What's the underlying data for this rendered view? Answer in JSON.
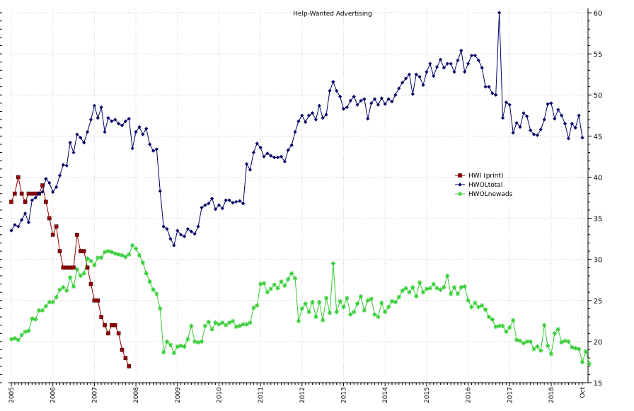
{
  "chart_data": {
    "type": "line",
    "title": "Help-Wanted Advertising",
    "xlabel": "",
    "ylabel": "",
    "ylim": [
      15,
      60
    ],
    "y_ticks": [
      15,
      20,
      25,
      30,
      35,
      40,
      45,
      50,
      55,
      60
    ],
    "x_range": [
      2005.0,
      2018.75
    ],
    "x_tick_labels": [
      {
        "label": "2005",
        "x": 2005
      },
      {
        "label": "2006",
        "x": 2006
      },
      {
        "label": "2007",
        "x": 2007
      },
      {
        "label": "2008",
        "x": 2008
      },
      {
        "label": "2009",
        "x": 2009
      },
      {
        "label": "2010",
        "x": 2010
      },
      {
        "label": "2011",
        "x": 2011
      },
      {
        "label": "2012",
        "x": 2012
      },
      {
        "label": "2013",
        "x": 2013
      },
      {
        "label": "2014",
        "x": 2014
      },
      {
        "label": "2015",
        "x": 2015
      },
      {
        "label": "2016",
        "x": 2016
      },
      {
        "label": "2017",
        "x": 2017
      },
      {
        "label": "2018",
        "x": 2018
      },
      {
        "label": "Oct",
        "x": 2018.75
      }
    ],
    "grid": true,
    "legend_position": "center-right",
    "series": [
      {
        "name": "HWI (print)",
        "color": "#990000",
        "marker": "square",
        "x_start": 2005.0,
        "step": 0.0833333,
        "values": [
          37,
          38,
          40,
          38,
          37,
          38,
          38,
          38,
          38,
          39,
          37,
          35,
          33,
          34,
          31,
          29,
          29,
          29,
          29,
          33,
          31,
          31,
          29,
          27,
          25,
          25,
          23,
          22,
          21,
          22,
          22,
          21,
          19,
          18,
          17
        ]
      },
      {
        "name": "HWOLtotal",
        "color": "#000066",
        "marker": "diamond",
        "x_start": 2005.0,
        "step": 0.0833333,
        "values": [
          33.5,
          34.2,
          34,
          34.8,
          35.6,
          34.5,
          37.2,
          37.5,
          38,
          38.2,
          39.8,
          39.3,
          38.2,
          38.8,
          40.2,
          41.5,
          41.4,
          44.2,
          43,
          45.2,
          44.8,
          44.2,
          45.5,
          47,
          48.7,
          47.2,
          48.5,
          45.5,
          47.2,
          46.8,
          47,
          46.5,
          46.3,
          46.8,
          47.1,
          43.5,
          45.5,
          46.1,
          45.2,
          45.9,
          44,
          43.2,
          43.4,
          38.3,
          34,
          33.7,
          32.5,
          31.7,
          33.5,
          33,
          32.8,
          33.7,
          33.4,
          33.1,
          34,
          36.3,
          36.6,
          36.8,
          37.4,
          36.1,
          36.6,
          36.2,
          37.2,
          37.2,
          36.9,
          37.0,
          37.1,
          36.8,
          41.6,
          40.9,
          43,
          44.1,
          43.6,
          42.5,
          42.9,
          42.6,
          42.4,
          42.4,
          42.5,
          41.9,
          43.3,
          43.9,
          45.5,
          46.8,
          47.5,
          46.7,
          47.5,
          47.8,
          47,
          48.7,
          47.2,
          47.6,
          50.5,
          51.6,
          50.5,
          49.8,
          48.3,
          48.5,
          49.3,
          49.8,
          48.8,
          49.3,
          49.5,
          47.1,
          49,
          49.5,
          48.8,
          49.6,
          48.9,
          49.5,
          49.2,
          50,
          50.8,
          51.5,
          52,
          52.5,
          50.1,
          52.5,
          52.2,
          51.2,
          52.8,
          53.8,
          52.3,
          53.4,
          54.3,
          53.3,
          53.8,
          53.8,
          52.8,
          54.2,
          55.4,
          52.8,
          53.8,
          54.8,
          54.8,
          54.2,
          53.3,
          51,
          51,
          50.2,
          50,
          60,
          47.2,
          49.1,
          48.8,
          45.4,
          46.6,
          46.1,
          47.8,
          47.4,
          45.7,
          45.2,
          45.1,
          45.8,
          47,
          48.9,
          49,
          47.1,
          48.2,
          47.5,
          46.5,
          44.7,
          46.5,
          46,
          47.5,
          44.8
        ]
      },
      {
        "name": "HWOLnewads",
        "color": "#33cc33",
        "marker": "star",
        "x_start": 2005.0,
        "step": 0.0833333,
        "values": [
          20.3,
          20.4,
          20.2,
          20.8,
          21.2,
          21.3,
          22.8,
          22.7,
          23.8,
          23.8,
          24.3,
          24.8,
          24.8,
          25.4,
          26.3,
          26.6,
          26.2,
          27.8,
          26.7,
          28.8,
          28,
          28.3,
          30.1,
          29.8,
          29.3,
          30.2,
          30.2,
          30.9,
          31,
          30.9,
          30.7,
          30.6,
          30.5,
          30.3,
          30.6,
          31.7,
          31.3,
          30.5,
          29.6,
          28.3,
          27.3,
          26.3,
          25.8,
          24,
          18.7,
          20,
          19.6,
          18.6,
          19.4,
          19.5,
          19.4,
          20.3,
          21.9,
          20,
          19.9,
          20,
          21.9,
          22.4,
          21.5,
          22.3,
          22.1,
          22.3,
          22,
          22.3,
          22.5,
          21.8,
          21.9,
          22.1,
          22.1,
          22.3,
          24.1,
          24.4,
          27,
          27.1,
          26,
          26.4,
          26.9,
          26.5,
          27.3,
          26.8,
          27.6,
          28.3,
          27.7,
          22.5,
          24,
          24.6,
          23.6,
          24.8,
          23,
          24.8,
          22.6,
          25.3,
          23.5,
          29.5,
          23.6,
          24.9,
          24.2,
          25.3,
          23.3,
          23.6,
          24.6,
          25.5,
          23.8,
          25,
          25.2,
          23.3,
          23,
          24.7,
          23.6,
          24.2,
          24.9,
          24.8,
          25.4,
          26.2,
          26.5,
          26,
          26.6,
          25.5,
          27.2,
          26,
          26.4,
          26.5,
          27,
          26.5,
          26.3,
          26.6,
          28,
          25.8,
          26.6,
          25.8,
          26.6,
          26.7,
          25,
          24.2,
          24.7,
          24.2,
          24.4,
          23.9,
          23,
          22.7,
          21.8,
          21.9,
          21.9,
          21.2,
          21.7,
          22.6,
          20.2,
          20.1,
          19.8,
          20.0,
          20,
          19.1,
          19.4,
          18.9,
          22,
          19.5,
          18.5,
          21,
          21.5,
          19.9,
          20.1,
          20,
          19.3,
          19.2,
          19.1,
          17.5,
          18.8,
          17.3
        ]
      }
    ]
  }
}
